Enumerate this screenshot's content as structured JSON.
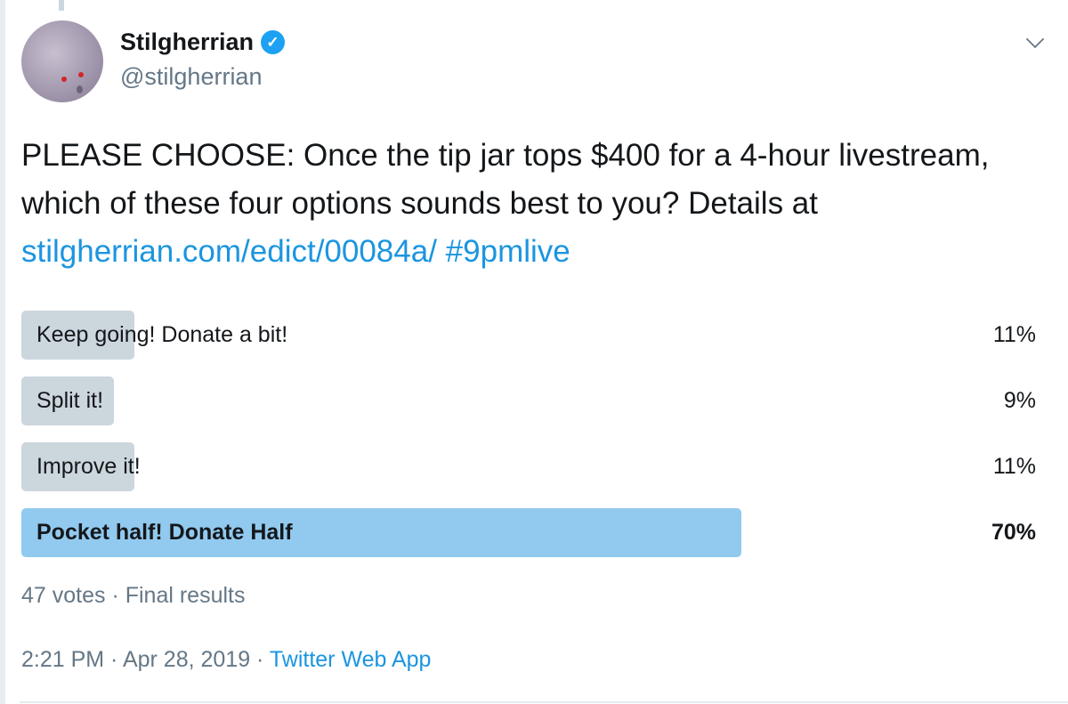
{
  "author": {
    "name": "Stilgherrian",
    "handle": "@stilgherrian",
    "verified": true
  },
  "tweet": {
    "text": "PLEASE CHOOSE: Once the tip jar tops $400 for a 4-hour livestream, which of these four options sounds best to you? Details at ",
    "link": "stilgherrian.com/edict/00084a/",
    "hashtag": "#9pmlive"
  },
  "poll": {
    "options": [
      {
        "label": "Keep going! Donate a bit!",
        "percent": "11%",
        "value": 11,
        "winner": false
      },
      {
        "label": "Split it!",
        "percent": "9%",
        "value": 9,
        "winner": false
      },
      {
        "label": "Improve it!",
        "percent": "11%",
        "value": 11,
        "winner": false
      },
      {
        "label": "Pocket half! Donate Half",
        "percent": "70%",
        "value": 70,
        "winner": true
      }
    ],
    "summary": "47 votes · Final results"
  },
  "timestamp": "2:21 PM · Apr 28, 2019 · ",
  "source": "Twitter Web App",
  "colors": {
    "accent": "#1da1f2",
    "bar": "#ccd6dd",
    "winner_bar": "#91c9ef"
  }
}
